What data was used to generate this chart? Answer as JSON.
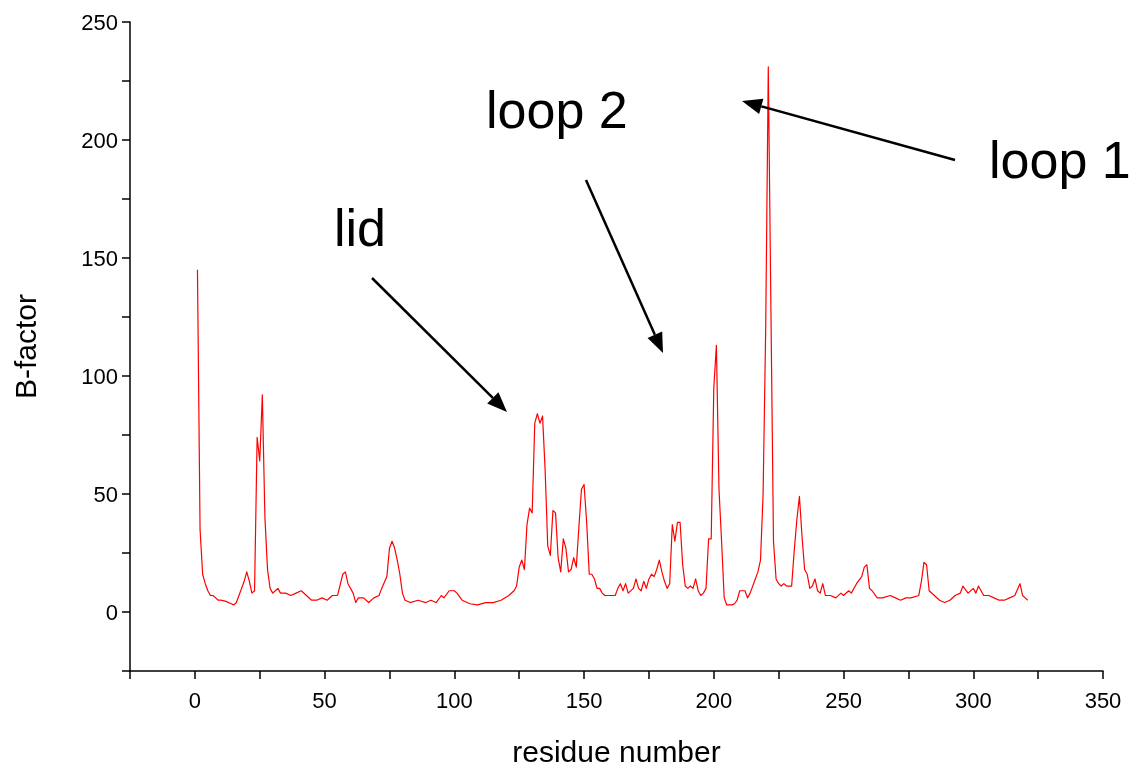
{
  "chart_data": {
    "type": "line",
    "xlabel": "residue number",
    "ylabel": "B-factor",
    "xlim": [
      -25,
      350
    ],
    "xticks": [
      {
        "value": -25,
        "label": null
      },
      0,
      {
        "value": 25,
        "label": null
      },
      50,
      {
        "value": 75,
        "label": null
      },
      100,
      {
        "value": 125,
        "label": null
      },
      150,
      {
        "value": 175,
        "label": null
      },
      200,
      {
        "value": 225,
        "label": null
      },
      250,
      {
        "value": 275,
        "label": null
      },
      300,
      {
        "value": 325,
        "label": null
      },
      350
    ],
    "ylim": [
      -25,
      250
    ],
    "yticks": [
      {
        "value": -25,
        "label": null
      },
      0,
      {
        "value": 25,
        "label": null
      },
      50,
      {
        "value": 75,
        "label": null
      },
      100,
      {
        "value": 125,
        "label": null
      },
      150,
      {
        "value": 175,
        "label": null
      },
      200,
      {
        "value": 225,
        "label": null
      },
      250
    ],
    "grid": false,
    "marker": "none",
    "line_style": "solid",
    "annotations": [
      "lid",
      "loop 2",
      "loop 1"
    ],
    "series": [
      {
        "color": "#ff0000",
        "x": [
          1,
          2,
          3,
          4,
          5,
          6,
          7,
          8,
          9,
          10,
          12,
          14,
          15,
          16,
          17,
          18,
          19,
          20,
          21,
          22,
          23,
          24,
          25,
          26,
          27,
          28,
          29,
          30,
          31,
          32,
          33,
          35,
          37,
          39,
          41,
          43,
          45,
          47,
          49,
          51,
          53,
          55,
          57,
          58,
          59,
          61,
          62,
          63,
          65,
          67,
          69,
          71,
          72,
          74,
          75,
          76,
          77,
          78,
          79,
          80,
          81,
          83,
          86,
          89,
          91,
          93,
          95,
          96,
          98,
          100,
          101,
          103,
          106,
          109,
          112,
          115,
          118,
          121,
          123,
          124,
          125,
          126,
          127,
          128,
          129,
          130,
          131,
          132,
          133,
          134,
          135,
          136,
          137,
          138,
          139,
          140,
          141,
          142,
          143,
          144,
          145,
          146,
          147,
          148,
          149,
          150,
          151,
          152,
          153,
          154,
          155,
          156,
          157,
          158,
          160,
          162,
          163,
          164,
          165,
          166,
          167,
          169,
          170,
          171,
          172,
          173,
          174,
          175,
          176,
          177,
          178,
          179,
          180,
          181,
          182,
          183,
          184,
          185,
          186,
          187,
          188,
          189,
          190,
          191,
          192,
          193,
          194,
          195,
          196,
          197,
          198,
          199,
          200,
          201,
          202,
          203,
          204,
          205,
          206,
          207,
          208,
          209,
          210,
          211,
          212,
          213,
          214,
          216,
          217,
          218,
          219,
          220,
          221,
          222,
          223,
          224,
          225,
          226,
          227,
          228,
          230,
          231,
          232,
          233,
          234,
          235,
          236,
          237,
          238,
          239,
          240,
          241,
          242,
          243,
          245,
          247,
          249,
          250,
          252,
          253,
          255,
          257,
          258,
          259,
          260,
          261,
          263,
          265,
          268,
          270,
          272,
          274,
          276,
          279,
          280,
          281,
          282,
          283,
          285,
          287,
          289,
          291,
          293,
          295,
          296,
          298,
          300,
          301,
          302,
          304,
          306,
          308,
          310,
          312,
          314,
          316,
          318,
          319,
          320,
          321
        ],
        "values": [
          145,
          35,
          16,
          12,
          9,
          7,
          7,
          6,
          5,
          5,
          4.5,
          3.5,
          3,
          4,
          7,
          10,
          13,
          17,
          13,
          8,
          9,
          74,
          64,
          92,
          40,
          18,
          10,
          8,
          9,
          10,
          8,
          8,
          7,
          8,
          9,
          7,
          5,
          5,
          6,
          5,
          7,
          7,
          16,
          17,
          12,
          8,
          4,
          6,
          6,
          4,
          6,
          7,
          10,
          15,
          27,
          30,
          27,
          22,
          16,
          8,
          5,
          4,
          5,
          4,
          5,
          4,
          7,
          6,
          9,
          9,
          8,
          5,
          3.5,
          3,
          4,
          4,
          5,
          7,
          9,
          11,
          19,
          22,
          18,
          37,
          44,
          42,
          80,
          84,
          80,
          83,
          60,
          28,
          24,
          43,
          42,
          23,
          17,
          31,
          27,
          17,
          18,
          23,
          19,
          36,
          52,
          54,
          38,
          16,
          16,
          14,
          10,
          10,
          8,
          7,
          7,
          7,
          10,
          12,
          9,
          12,
          8,
          10,
          14,
          10,
          9,
          13,
          10,
          14,
          16,
          15,
          18,
          22,
          17,
          13,
          10,
          12,
          37,
          30,
          38,
          38,
          20,
          11,
          10,
          11,
          10,
          14,
          9,
          7,
          8,
          10,
          31,
          31,
          95,
          113,
          52,
          30,
          6,
          3,
          3,
          3,
          3.5,
          5,
          9,
          9,
          9,
          6,
          8,
          14,
          17,
          22,
          50,
          120,
          231,
          130,
          30,
          14,
          12,
          11,
          12,
          11,
          11,
          26,
          39,
          49,
          32,
          18,
          16,
          10,
          11,
          14,
          9,
          8,
          12,
          7,
          7,
          6,
          8,
          7,
          9,
          8,
          12,
          15,
          19,
          20,
          10,
          9,
          6,
          6,
          7,
          6,
          5,
          6,
          6,
          7,
          13,
          21,
          20,
          9,
          7,
          5,
          4,
          5,
          7,
          8,
          11,
          8,
          10,
          8,
          11,
          7,
          7,
          6,
          5,
          5,
          6,
          7,
          12,
          7,
          6,
          5
        ]
      }
    ]
  }
}
